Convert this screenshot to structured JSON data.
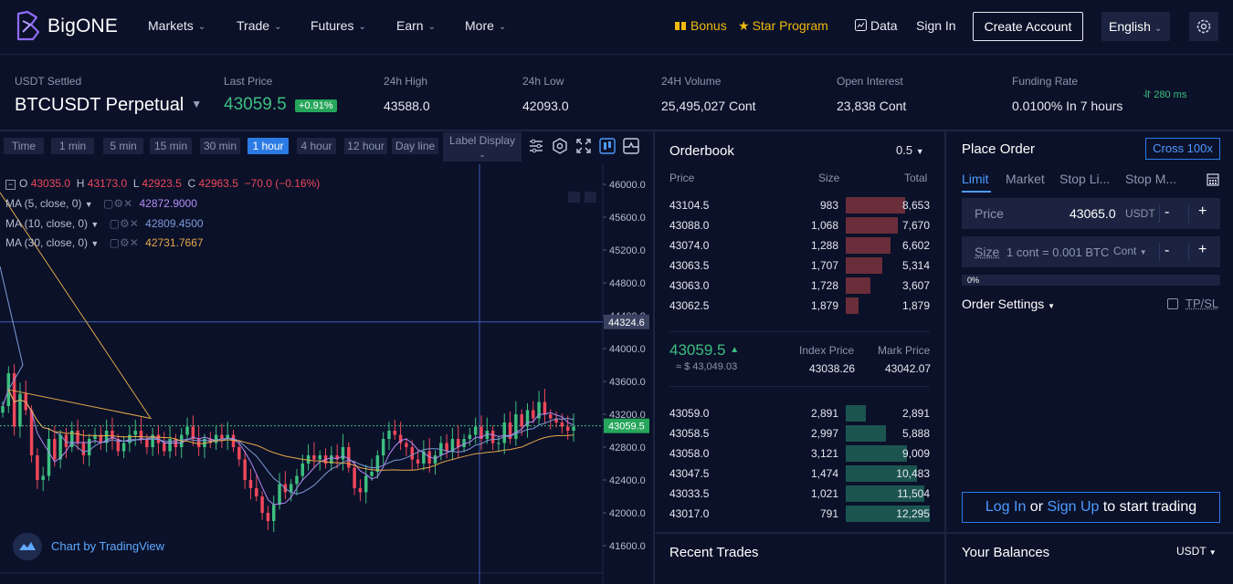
{
  "brand": {
    "name": "BigONE"
  },
  "nav": {
    "items": [
      "Markets",
      "Trade",
      "Futures",
      "Earn",
      "More"
    ],
    "bonus": "Bonus",
    "star_program": "Star Program",
    "data": "Data",
    "sign_in": "Sign In",
    "create_account": "Create Account",
    "language": "English"
  },
  "ticker": {
    "settled": "USDT Settled",
    "symbol": "BTCUSDT Perpetual",
    "last_price_label": "Last Price",
    "last_price": "43059.5",
    "change_pct": "+0.91%",
    "high_label": "24h High",
    "high": "43588.0",
    "low_label": "24h Low",
    "low": "42093.0",
    "volume_label": "24H Volume",
    "volume": "25,495,027 Cont",
    "oi_label": "Open Interest",
    "oi": "23,838 Cont",
    "funding_label": "Funding Rate",
    "funding": "0.0100% In 7 hours",
    "latency": "280 ms"
  },
  "chart_toolbar": {
    "timeframes": [
      "Time",
      "1 min",
      "5 min",
      "15 min",
      "30 min",
      "1 hour",
      "4 hour",
      "12 hour",
      "Day line"
    ],
    "active_timeframe": "1 hour",
    "label_display": "Label Display"
  },
  "chart_legend": {
    "ohlc": {
      "o_label": "O",
      "o": "43035.0",
      "h_label": "H",
      "h": "43173.0",
      "l_label": "L",
      "l": "42923.5",
      "c_label": "C",
      "c": "42963.5",
      "change": "−70.0 (−0.16%)"
    },
    "ma5": {
      "label": "MA (5, close, 0)",
      "value": "42872.9000"
    },
    "ma10": {
      "label": "MA (10, close, 0)",
      "value": "42809.4500"
    },
    "ma30": {
      "label": "MA (30, close, 0)",
      "value": "42731.7667"
    },
    "attribution": "Chart by TradingView"
  },
  "price_axis": {
    "ticks": [
      "46000.0",
      "45600.0",
      "45200.0",
      "44800.0",
      "44400.0",
      "44000.0",
      "43600.0",
      "43200.0",
      "42800.0",
      "42400.0",
      "42000.0",
      "41600.0"
    ],
    "crosshair_price": "44324.6",
    "last_price_tag": "43059.5"
  },
  "orderbook": {
    "title": "Orderbook",
    "precision": "0.5",
    "headers": {
      "price": "Price",
      "size": "Size",
      "total": "Total"
    },
    "asks": [
      {
        "price": "43104.5",
        "size": "983",
        "total": "8,653",
        "total_value": 8653
      },
      {
        "price": "43088.0",
        "size": "1,068",
        "total": "7,670",
        "total_value": 7670
      },
      {
        "price": "43074.0",
        "size": "1,288",
        "total": "6,602",
        "total_value": 6602
      },
      {
        "price": "43063.5",
        "size": "1,707",
        "total": "5,314",
        "total_value": 5314
      },
      {
        "price": "43063.0",
        "size": "1,728",
        "total": "3,607",
        "total_value": 3607
      },
      {
        "price": "43062.5",
        "size": "1,879",
        "total": "1,879",
        "total_value": 1879
      }
    ],
    "mid_price": "43059.5",
    "mid_usd": "≈ $ 43,049.03",
    "index_price_label": "Index Price",
    "index_price": "43038.26",
    "mark_price_label": "Mark Price",
    "mark_price": "43042.07",
    "bids": [
      {
        "price": "43059.0",
        "size": "2,891",
        "total": "2,891",
        "total_value": 2891
      },
      {
        "price": "43058.5",
        "size": "2,997",
        "total": "5,888",
        "total_value": 5888
      },
      {
        "price": "43058.0",
        "size": "3,121",
        "total": "9,009",
        "total_value": 9009
      },
      {
        "price": "43047.5",
        "size": "1,474",
        "total": "10,483",
        "total_value": 10483
      },
      {
        "price": "43033.5",
        "size": "1,021",
        "total": "11,504",
        "total_value": 11504
      },
      {
        "price": "43017.0",
        "size": "791",
        "total": "12,295",
        "total_value": 12295
      }
    ],
    "recent_trades": "Recent Trades"
  },
  "place_order": {
    "title": "Place Order",
    "leverage": "Cross 100x",
    "tabs": [
      "Limit",
      "Market",
      "Stop Li...",
      "Stop M..."
    ],
    "price_label": "Price",
    "price_value": "43065.0",
    "price_unit": "USDT",
    "size_label": "Size",
    "size_hint": "1 cont = 0.001 BTC",
    "size_unit": "Cont",
    "minus": "-",
    "plus": "+",
    "slider_pct": "0%",
    "order_settings": "Order Settings",
    "tpsl": "TP/SL",
    "login_text": "Log In",
    "or_text": "or",
    "signup_text": "Sign Up",
    "to_start": "to start trading",
    "balances_title": "Your Balances",
    "balances_unit": "USDT"
  },
  "colors": {
    "background": "#0b1129",
    "up": "#3dbf7f",
    "down": "#f0475a",
    "accent": "#2c7be5",
    "gold": "#f0b90b"
  }
}
